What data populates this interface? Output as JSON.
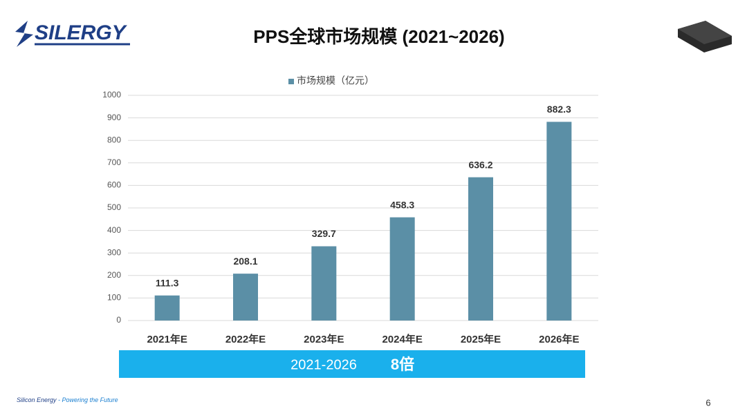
{
  "chart_data": {
    "type": "bar",
    "title": "PPS全球市场规模 (2021~2026)",
    "categories": [
      "2021年E",
      "2022年E",
      "2023年E",
      "2024年E",
      "2025年E",
      "2026年E"
    ],
    "series": [
      {
        "name": "市场规模（亿元）",
        "color": "#5b8fa6",
        "values": [
          111.3,
          208.1,
          329.7,
          458.3,
          636.2,
          882.3
        ]
      }
    ],
    "ylim": [
      0,
      1000
    ],
    "yticks": [
      0,
      100,
      200,
      300,
      400,
      500,
      600,
      700,
      800,
      900,
      1000
    ],
    "grid": true,
    "legend": "top",
    "annotations": [
      "2021-2026",
      "8倍"
    ]
  },
  "slide": {
    "logo": "SILERGY",
    "footer": [
      "Silicon Energy",
      "- Powering the Future"
    ],
    "page_number": 6
  }
}
